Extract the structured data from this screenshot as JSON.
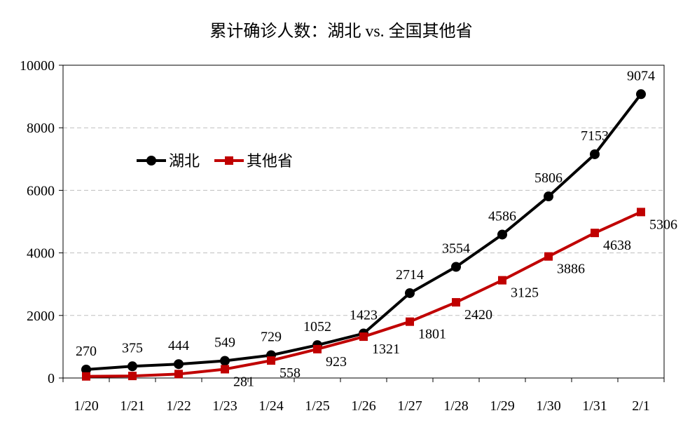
{
  "chart_data": {
    "type": "line",
    "title": "累计确诊人数：湖北 vs. 全国其他省",
    "xlabel": "",
    "ylabel": "",
    "categories": [
      "1/20",
      "1/21",
      "1/22",
      "1/23",
      "1/24",
      "1/25",
      "1/26",
      "1/27",
      "1/28",
      "1/29",
      "1/30",
      "1/31",
      "2/1"
    ],
    "ylim": [
      0,
      10000
    ],
    "yticks": [
      0,
      2000,
      4000,
      6000,
      8000,
      10000
    ],
    "grid": "horizontal-dashed",
    "legend": "left-middle",
    "series": [
      {
        "name": "湖北",
        "color": "#000000",
        "marker": "circle",
        "values": [
          270,
          375,
          444,
          549,
          729,
          1052,
          1423,
          2714,
          3554,
          4586,
          5806,
          7153,
          9074
        ]
      },
      {
        "name": "其他省",
        "color": "#c00000",
        "marker": "square",
        "values": [
          51,
          65,
          127,
          281,
          558,
          923,
          1321,
          1801,
          2420,
          3125,
          3886,
          4638,
          5306
        ]
      }
    ],
    "data_labels": {
      "湖北": [
        "270",
        "375",
        "444",
        "549",
        "729",
        "1052",
        "1423",
        "2714",
        "3554",
        "4586",
        "5806",
        "7153",
        "9074"
      ],
      "其他省": [
        "",
        "",
        "",
        "281",
        "558",
        "923",
        "1321",
        "1801",
        "2420",
        "3125",
        "3886",
        "4638",
        "5306"
      ]
    }
  }
}
